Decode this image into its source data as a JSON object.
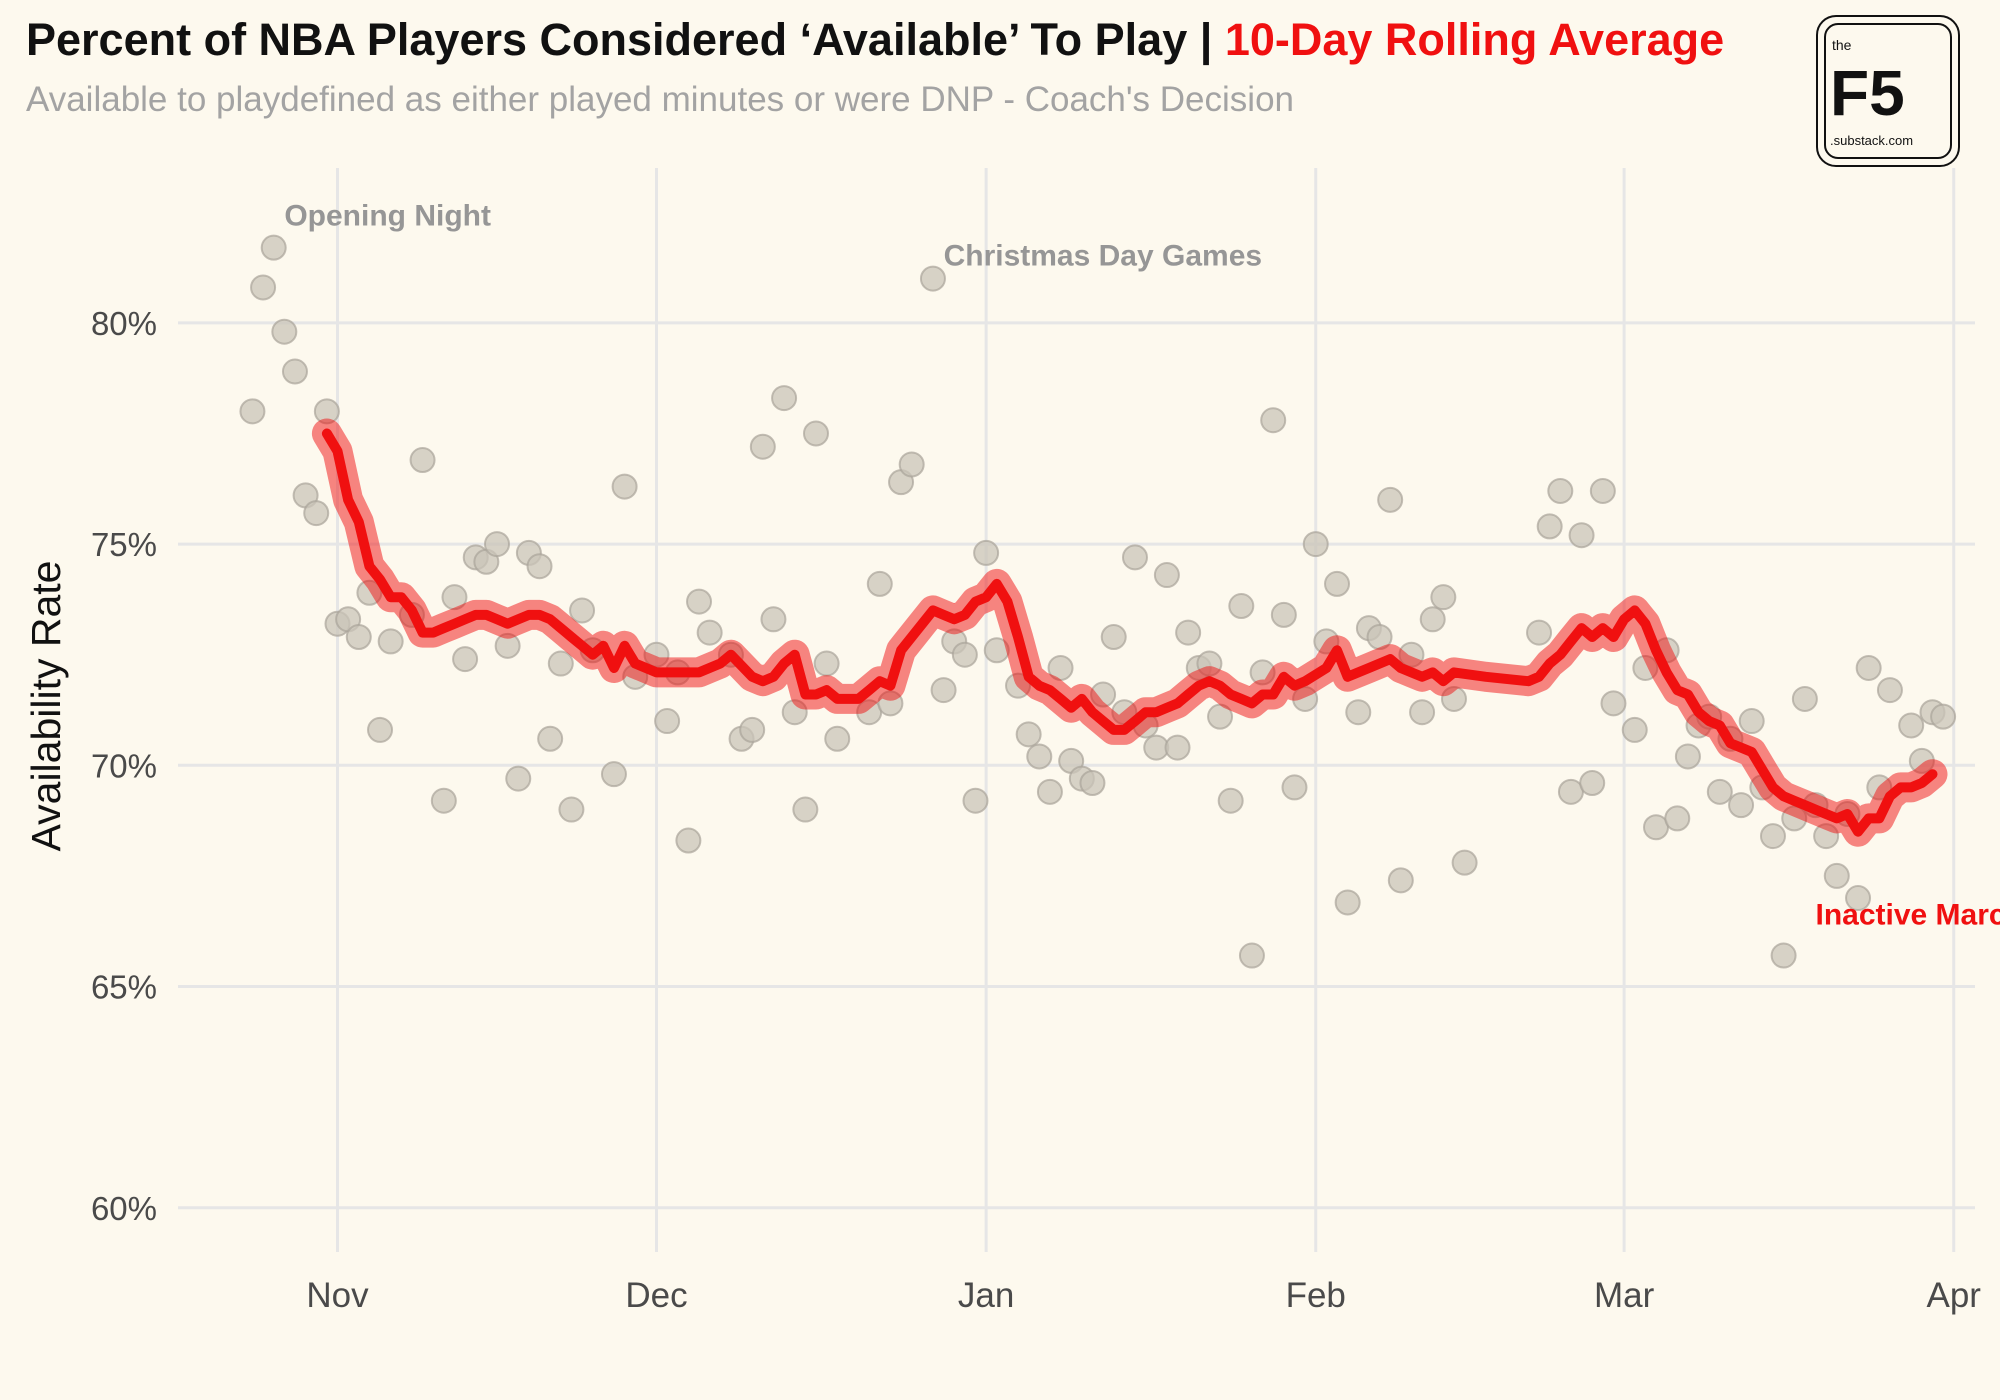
{
  "header": {
    "title_main": "Percent of NBA Players Considered ‘Available’ To Play | ",
    "title_accent": "10-Day Rolling Average",
    "subtitle": "Available to playdefined as either played minutes or were DNP - Coach's Decision"
  },
  "logo": {
    "top": "the",
    "main": "F5",
    "bottom": ".substack.com"
  },
  "colors": {
    "background": "#fdf9ee",
    "accent": "#f01010",
    "points": "#c9c4b8",
    "grid": "#e6e6e6"
  },
  "chart_data": {
    "type": "scatter",
    "ylabel": "Availability Rate",
    "xlabel": "",
    "x_axis": {
      "type": "date",
      "range": [
        "2023-10-17",
        "2024-04-03"
      ]
    },
    "ylim": [
      59,
      83.5
    ],
    "y_ticks": [
      60,
      65,
      70,
      75,
      80
    ],
    "y_tick_labels": [
      "60%",
      "65%",
      "70%",
      "75%",
      "80%"
    ],
    "x_ticks": [
      "2023-11-01",
      "2023-12-01",
      "2024-01-01",
      "2024-02-01",
      "2024-03-01",
      "2024-04-01"
    ],
    "x_tick_labels": [
      "Nov",
      "Dec",
      "Jan",
      "Feb",
      "Mar",
      "Apr"
    ],
    "grid": true,
    "points": [
      [
        "2023-10-24",
        78.0
      ],
      [
        "2023-10-25",
        80.8
      ],
      [
        "2023-10-26",
        81.7
      ],
      [
        "2023-10-27",
        79.8
      ],
      [
        "2023-10-28",
        78.9
      ],
      [
        "2023-10-29",
        76.1
      ],
      [
        "2023-10-30",
        75.7
      ],
      [
        "2023-10-31",
        78.0
      ],
      [
        "2023-11-01",
        73.2
      ],
      [
        "2023-11-02",
        73.3
      ],
      [
        "2023-11-03",
        72.9
      ],
      [
        "2023-11-04",
        73.9
      ],
      [
        "2023-11-05",
        70.8
      ],
      [
        "2023-11-06",
        72.8
      ],
      [
        "2023-11-08",
        73.4
      ],
      [
        "2023-11-09",
        76.9
      ],
      [
        "2023-11-11",
        69.2
      ],
      [
        "2023-11-12",
        73.8
      ],
      [
        "2023-11-13",
        72.4
      ],
      [
        "2023-11-14",
        74.7
      ],
      [
        "2023-11-15",
        74.6
      ],
      [
        "2023-11-16",
        75.0
      ],
      [
        "2023-11-17",
        72.7
      ],
      [
        "2023-11-18",
        69.7
      ],
      [
        "2023-11-19",
        74.8
      ],
      [
        "2023-11-20",
        74.5
      ],
      [
        "2023-11-21",
        70.6
      ],
      [
        "2023-11-22",
        72.3
      ],
      [
        "2023-11-23",
        69.0
      ],
      [
        "2023-11-24",
        73.5
      ],
      [
        "2023-11-25",
        72.6
      ],
      [
        "2023-11-27",
        69.8
      ],
      [
        "2023-11-28",
        76.3
      ],
      [
        "2023-11-29",
        72.0
      ],
      [
        "2023-12-01",
        72.5
      ],
      [
        "2023-12-02",
        71.0
      ],
      [
        "2023-12-03",
        72.1
      ],
      [
        "2023-12-04",
        68.3
      ],
      [
        "2023-12-05",
        73.7
      ],
      [
        "2023-12-06",
        73.0
      ],
      [
        "2023-12-08",
        72.5
      ],
      [
        "2023-12-09",
        70.6
      ],
      [
        "2023-12-10",
        70.8
      ],
      [
        "2023-12-11",
        77.2
      ],
      [
        "2023-12-12",
        73.3
      ],
      [
        "2023-12-13",
        78.3
      ],
      [
        "2023-12-14",
        71.2
      ],
      [
        "2023-12-15",
        69.0
      ],
      [
        "2023-12-16",
        77.5
      ],
      [
        "2023-12-17",
        72.3
      ],
      [
        "2023-12-18",
        70.6
      ],
      [
        "2023-12-21",
        71.2
      ],
      [
        "2023-12-22",
        74.1
      ],
      [
        "2023-12-23",
        71.4
      ],
      [
        "2023-12-24",
        76.4
      ],
      [
        "2023-12-25",
        76.8
      ],
      [
        "2023-12-27",
        81.0
      ],
      [
        "2023-12-28",
        71.7
      ],
      [
        "2023-12-29",
        72.8
      ],
      [
        "2023-12-30",
        72.5
      ],
      [
        "2023-12-31",
        69.2
      ],
      [
        "2024-01-01",
        74.8
      ],
      [
        "2024-01-02",
        72.6
      ],
      [
        "2024-01-04",
        71.8
      ],
      [
        "2024-01-05",
        70.7
      ],
      [
        "2024-01-06",
        70.2
      ],
      [
        "2024-01-07",
        69.4
      ],
      [
        "2024-01-08",
        72.2
      ],
      [
        "2024-01-09",
        70.1
      ],
      [
        "2024-01-10",
        69.7
      ],
      [
        "2024-01-11",
        69.6
      ],
      [
        "2024-01-12",
        71.6
      ],
      [
        "2024-01-13",
        72.9
      ],
      [
        "2024-01-14",
        71.2
      ],
      [
        "2024-01-15",
        74.7
      ],
      [
        "2024-01-16",
        70.9
      ],
      [
        "2024-01-17",
        70.4
      ],
      [
        "2024-01-18",
        74.3
      ],
      [
        "2024-01-19",
        70.4
      ],
      [
        "2024-01-20",
        73.0
      ],
      [
        "2024-01-21",
        72.2
      ],
      [
        "2024-01-22",
        72.3
      ],
      [
        "2024-01-23",
        71.1
      ],
      [
        "2024-01-24",
        69.2
      ],
      [
        "2024-01-25",
        73.6
      ],
      [
        "2024-01-26",
        65.7
      ],
      [
        "2024-01-27",
        72.1
      ],
      [
        "2024-01-28",
        77.8
      ],
      [
        "2024-01-29",
        73.4
      ],
      [
        "2024-01-30",
        69.5
      ],
      [
        "2024-01-31",
        71.5
      ],
      [
        "2024-02-01",
        75.0
      ],
      [
        "2024-02-02",
        72.8
      ],
      [
        "2024-02-03",
        74.1
      ],
      [
        "2024-02-04",
        66.9
      ],
      [
        "2024-02-05",
        71.2
      ],
      [
        "2024-02-06",
        73.1
      ],
      [
        "2024-02-07",
        72.9
      ],
      [
        "2024-02-08",
        76.0
      ],
      [
        "2024-02-09",
        67.4
      ],
      [
        "2024-02-10",
        72.5
      ],
      [
        "2024-02-11",
        71.2
      ],
      [
        "2024-02-12",
        73.3
      ],
      [
        "2024-02-13",
        73.8
      ],
      [
        "2024-02-14",
        71.5
      ],
      [
        "2024-02-15",
        67.8
      ],
      [
        "2024-02-22",
        73.0
      ],
      [
        "2024-02-23",
        75.4
      ],
      [
        "2024-02-24",
        76.2
      ],
      [
        "2024-02-25",
        69.4
      ],
      [
        "2024-02-26",
        75.2
      ],
      [
        "2024-02-27",
        69.6
      ],
      [
        "2024-02-28",
        76.2
      ],
      [
        "2024-02-29",
        71.4
      ],
      [
        "2024-03-02",
        70.8
      ],
      [
        "2024-03-03",
        72.2
      ],
      [
        "2024-03-04",
        68.6
      ],
      [
        "2024-03-05",
        72.6
      ],
      [
        "2024-03-06",
        68.8
      ],
      [
        "2024-03-07",
        70.2
      ],
      [
        "2024-03-08",
        70.9
      ],
      [
        "2024-03-09",
        71.1
      ],
      [
        "2024-03-10",
        69.4
      ],
      [
        "2024-03-11",
        70.6
      ],
      [
        "2024-03-12",
        69.1
      ],
      [
        "2024-03-13",
        71.0
      ],
      [
        "2024-03-14",
        69.5
      ],
      [
        "2024-03-15",
        68.4
      ],
      [
        "2024-03-16",
        65.7
      ],
      [
        "2024-03-17",
        68.8
      ],
      [
        "2024-03-18",
        71.5
      ],
      [
        "2024-03-19",
        69.1
      ],
      [
        "2024-03-20",
        68.4
      ],
      [
        "2024-03-21",
        67.5
      ],
      [
        "2024-03-22",
        68.9
      ],
      [
        "2024-03-23",
        67.0
      ],
      [
        "2024-03-24",
        72.2
      ],
      [
        "2024-03-25",
        69.5
      ],
      [
        "2024-03-26",
        71.7
      ],
      [
        "2024-03-28",
        70.9
      ],
      [
        "2024-03-29",
        70.1
      ],
      [
        "2024-03-30",
        71.2
      ],
      [
        "2024-03-31",
        71.1
      ]
    ],
    "rolling_average": [
      [
        "2023-10-31",
        77.5
      ],
      [
        "2023-11-01",
        77.1
      ],
      [
        "2023-11-02",
        76.0
      ],
      [
        "2023-11-03",
        75.5
      ],
      [
        "2023-11-04",
        74.5
      ],
      [
        "2023-11-05",
        74.2
      ],
      [
        "2023-11-06",
        73.8
      ],
      [
        "2023-11-07",
        73.8
      ],
      [
        "2023-11-08",
        73.5
      ],
      [
        "2023-11-09",
        73.0
      ],
      [
        "2023-11-10",
        73.0
      ],
      [
        "2023-11-11",
        73.1
      ],
      [
        "2023-11-12",
        73.2
      ],
      [
        "2023-11-13",
        73.3
      ],
      [
        "2023-11-14",
        73.4
      ],
      [
        "2023-11-15",
        73.4
      ],
      [
        "2023-11-16",
        73.3
      ],
      [
        "2023-11-17",
        73.2
      ],
      [
        "2023-11-18",
        73.3
      ],
      [
        "2023-11-19",
        73.4
      ],
      [
        "2023-11-20",
        73.4
      ],
      [
        "2023-11-21",
        73.3
      ],
      [
        "2023-11-22",
        73.1
      ],
      [
        "2023-11-23",
        72.9
      ],
      [
        "2023-11-24",
        72.7
      ],
      [
        "2023-11-25",
        72.5
      ],
      [
        "2023-11-26",
        72.7
      ],
      [
        "2023-11-27",
        72.2
      ],
      [
        "2023-11-28",
        72.7
      ],
      [
        "2023-11-29",
        72.3
      ],
      [
        "2023-12-01",
        72.1
      ],
      [
        "2023-12-03",
        72.1
      ],
      [
        "2023-12-05",
        72.1
      ],
      [
        "2023-12-07",
        72.3
      ],
      [
        "2023-12-08",
        72.5
      ],
      [
        "2023-12-10",
        72.0
      ],
      [
        "2023-12-11",
        71.9
      ],
      [
        "2023-12-12",
        72.0
      ],
      [
        "2023-12-13",
        72.3
      ],
      [
        "2023-12-14",
        72.5
      ],
      [
        "2023-12-15",
        71.6
      ],
      [
        "2023-12-16",
        71.6
      ],
      [
        "2023-12-17",
        71.7
      ],
      [
        "2023-12-18",
        71.5
      ],
      [
        "2023-12-20",
        71.5
      ],
      [
        "2023-12-21",
        71.7
      ],
      [
        "2023-12-22",
        71.9
      ],
      [
        "2023-12-23",
        71.8
      ],
      [
        "2023-12-24",
        72.6
      ],
      [
        "2023-12-26",
        73.2
      ],
      [
        "2023-12-27",
        73.5
      ],
      [
        "2023-12-28",
        73.4
      ],
      [
        "2023-12-29",
        73.3
      ],
      [
        "2023-12-30",
        73.4
      ],
      [
        "2023-12-31",
        73.7
      ],
      [
        "2024-01-01",
        73.8
      ],
      [
        "2024-01-02",
        74.1
      ],
      [
        "2024-01-03",
        73.7
      ],
      [
        "2024-01-04",
        72.9
      ],
      [
        "2024-01-05",
        72.0
      ],
      [
        "2024-01-06",
        71.8
      ],
      [
        "2024-01-07",
        71.7
      ],
      [
        "2024-01-08",
        71.5
      ],
      [
        "2024-01-09",
        71.3
      ],
      [
        "2024-01-10",
        71.5
      ],
      [
        "2024-01-11",
        71.2
      ],
      [
        "2024-01-12",
        71.0
      ],
      [
        "2024-01-13",
        70.8
      ],
      [
        "2024-01-14",
        70.8
      ],
      [
        "2024-01-15",
        71.0
      ],
      [
        "2024-01-16",
        71.2
      ],
      [
        "2024-01-17",
        71.2
      ],
      [
        "2024-01-18",
        71.3
      ],
      [
        "2024-01-19",
        71.4
      ],
      [
        "2024-01-20",
        71.6
      ],
      [
        "2024-01-21",
        71.8
      ],
      [
        "2024-01-22",
        71.9
      ],
      [
        "2024-01-23",
        71.8
      ],
      [
        "2024-01-24",
        71.6
      ],
      [
        "2024-01-25",
        71.5
      ],
      [
        "2024-01-26",
        71.4
      ],
      [
        "2024-01-27",
        71.6
      ],
      [
        "2024-01-28",
        71.6
      ],
      [
        "2024-01-29",
        72.0
      ],
      [
        "2024-01-30",
        71.8
      ],
      [
        "2024-01-31",
        71.9
      ],
      [
        "2024-02-02",
        72.2
      ],
      [
        "2024-02-03",
        72.6
      ],
      [
        "2024-02-04",
        72.0
      ],
      [
        "2024-02-06",
        72.2
      ],
      [
        "2024-02-08",
        72.4
      ],
      [
        "2024-02-09",
        72.2
      ],
      [
        "2024-02-10",
        72.1
      ],
      [
        "2024-02-11",
        72.0
      ],
      [
        "2024-02-12",
        72.1
      ],
      [
        "2024-02-13",
        71.9
      ],
      [
        "2024-02-14",
        72.1
      ],
      [
        "2024-02-17",
        72.0
      ],
      [
        "2024-02-21",
        71.9
      ],
      [
        "2024-02-22",
        72.0
      ],
      [
        "2024-02-23",
        72.3
      ],
      [
        "2024-02-24",
        72.5
      ],
      [
        "2024-02-25",
        72.8
      ],
      [
        "2024-02-26",
        73.1
      ],
      [
        "2024-02-27",
        72.9
      ],
      [
        "2024-02-28",
        73.1
      ],
      [
        "2024-02-29",
        72.9
      ],
      [
        "2024-03-01",
        73.3
      ],
      [
        "2024-03-02",
        73.5
      ],
      [
        "2024-03-03",
        73.2
      ],
      [
        "2024-03-04",
        72.6
      ],
      [
        "2024-03-05",
        72.1
      ],
      [
        "2024-03-06",
        71.7
      ],
      [
        "2024-03-07",
        71.6
      ],
      [
        "2024-03-08",
        71.2
      ],
      [
        "2024-03-09",
        71.0
      ],
      [
        "2024-03-10",
        70.9
      ],
      [
        "2024-03-11",
        70.5
      ],
      [
        "2024-03-12",
        70.4
      ],
      [
        "2024-03-13",
        70.3
      ],
      [
        "2024-03-14",
        69.9
      ],
      [
        "2024-03-15",
        69.5
      ],
      [
        "2024-03-16",
        69.3
      ],
      [
        "2024-03-17",
        69.2
      ],
      [
        "2024-03-18",
        69.1
      ],
      [
        "2024-03-19",
        69.0
      ],
      [
        "2024-03-20",
        68.9
      ],
      [
        "2024-03-21",
        68.8
      ],
      [
        "2024-03-22",
        68.9
      ],
      [
        "2024-03-23",
        68.5
      ],
      [
        "2024-03-24",
        68.8
      ],
      [
        "2024-03-25",
        68.8
      ],
      [
        "2024-03-26",
        69.3
      ],
      [
        "2024-03-27",
        69.5
      ],
      [
        "2024-03-28",
        69.5
      ],
      [
        "2024-03-29",
        69.6
      ],
      [
        "2024-03-30",
        69.8
      ]
    ],
    "annotations": [
      {
        "text": "Opening Night",
        "x": "2023-10-27",
        "y": 82.2,
        "color": "#969696"
      },
      {
        "text": "Christmas Day Games",
        "x": "2023-12-28",
        "y": 81.3,
        "color": "#969696"
      },
      {
        "text": "Inactive March",
        "x": "2024-03-19",
        "y": 66.4,
        "color": "#f01010"
      }
    ]
  }
}
